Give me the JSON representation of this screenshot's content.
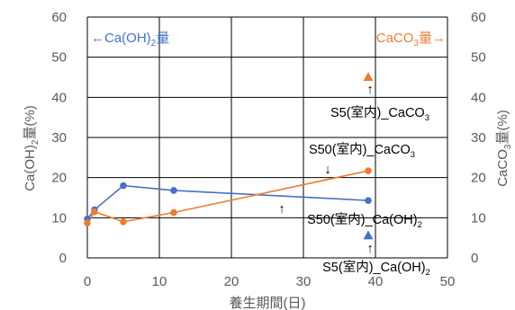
{
  "chart_data": {
    "type": "line",
    "xlabel": "養生期間(日)",
    "ylabel_left": {
      "pre": "Ca(OH)",
      "sub": "2",
      "post": "量(%)"
    },
    "ylabel_right": {
      "pre": "CaCO",
      "sub": "3",
      "post": "量(%)"
    },
    "xlim": [
      0,
      50
    ],
    "ylim": [
      0,
      60
    ],
    "x_ticks": [
      "0",
      "10",
      "20",
      "30",
      "40",
      "50"
    ],
    "y_ticks": [
      "0",
      "10",
      "20",
      "30",
      "40",
      "50",
      "60"
    ],
    "grid": true,
    "colors": {
      "caoh2": "#4472c4",
      "caco3": "#ed7d31"
    },
    "legend": {
      "left": {
        "arrow": "←",
        "pre": "Ca(OH)",
        "sub": "2",
        "post": "量"
      },
      "right": {
        "pre": "CaCO",
        "sub": "3",
        "post": "量",
        "arrow": "→"
      }
    },
    "series": [
      {
        "name": "S50(室内)_Ca(OH)2",
        "color": "#4472c4",
        "marker": "circle",
        "x": [
          0,
          1,
          5,
          12,
          39
        ],
        "y": [
          9.7,
          12,
          18,
          16.8,
          14.3
        ]
      },
      {
        "name": "S50(室内)_CaCO3",
        "color": "#ed7d31",
        "marker": "circle",
        "x": [
          0,
          1,
          5,
          12,
          39
        ],
        "y": [
          8.7,
          11.5,
          9,
          11.3,
          21.7
        ]
      },
      {
        "name": "S5(室内)_CaCO3",
        "color": "#ed7d31",
        "marker": "triangle",
        "x": [
          39
        ],
        "y": [
          45
        ]
      },
      {
        "name": "S5(室内)_Ca(OH)2",
        "color": "#4472c4",
        "marker": "triangle",
        "x": [
          39
        ],
        "y": [
          5.5
        ]
      }
    ],
    "annotations": [
      {
        "id": "s5_caco3",
        "pre": "S5(室内)_CaCO",
        "sub": "3",
        "arrow": "↑"
      },
      {
        "id": "s50_caco3",
        "pre": "S50(室内)_CaCO",
        "sub": "3",
        "arrow": "↓"
      },
      {
        "id": "s50_caoh2",
        "pre": "S50(室内)_Ca(OH)",
        "sub": "2",
        "arrow": "↑"
      },
      {
        "id": "s5_caoh2",
        "pre": "S5(室内)_Ca(OH)",
        "sub": "2",
        "arrow": "↑"
      }
    ]
  }
}
